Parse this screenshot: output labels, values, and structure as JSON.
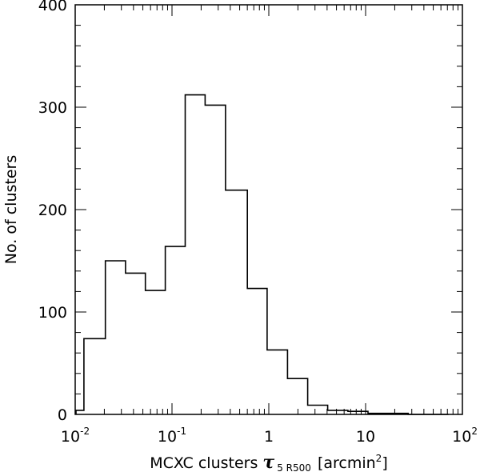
{
  "chart_data": {
    "type": "bar",
    "subtype": "histogram-step",
    "x_scale": "log",
    "xlim": [
      0.01,
      100
    ],
    "ylim": [
      0,
      400
    ],
    "ylabel": "No. of clusters",
    "xlabel": {
      "prefix": "MCXC clusters ",
      "symbol": "τ",
      "subscript": "5 R500",
      "unit_open": "[arcmin",
      "unit_sup": "2",
      "unit_close": "]"
    },
    "x_ticks": [
      {
        "value": 0.01,
        "base": "10",
        "exp": "-2"
      },
      {
        "value": 0.1,
        "base": "10",
        "exp": "-1"
      },
      {
        "value": 1,
        "base": "1",
        "exp": ""
      },
      {
        "value": 10,
        "base": "10",
        "exp": ""
      },
      {
        "value": 100,
        "base": "10",
        "exp": "2"
      }
    ],
    "y_ticks": [
      {
        "value": 0,
        "label": "0"
      },
      {
        "value": 100,
        "label": "100"
      },
      {
        "value": 200,
        "label": "200"
      },
      {
        "value": 300,
        "label": "300"
      },
      {
        "value": 400,
        "label": "400"
      }
    ],
    "bin_edges": [
      0.0102,
      0.0123,
      0.0205,
      0.0331,
      0.0531,
      0.0852,
      0.137,
      0.22,
      0.357,
      0.601,
      0.96,
      1.56,
      2.52,
      4.06,
      6.57,
      10.59,
      17.1,
      27.5,
      44.5,
      71.8
    ],
    "counts": [
      4,
      74,
      150,
      138,
      121,
      164,
      312,
      302,
      219,
      123,
      63,
      35,
      9,
      4,
      3,
      1,
      1,
      0,
      0
    ]
  }
}
